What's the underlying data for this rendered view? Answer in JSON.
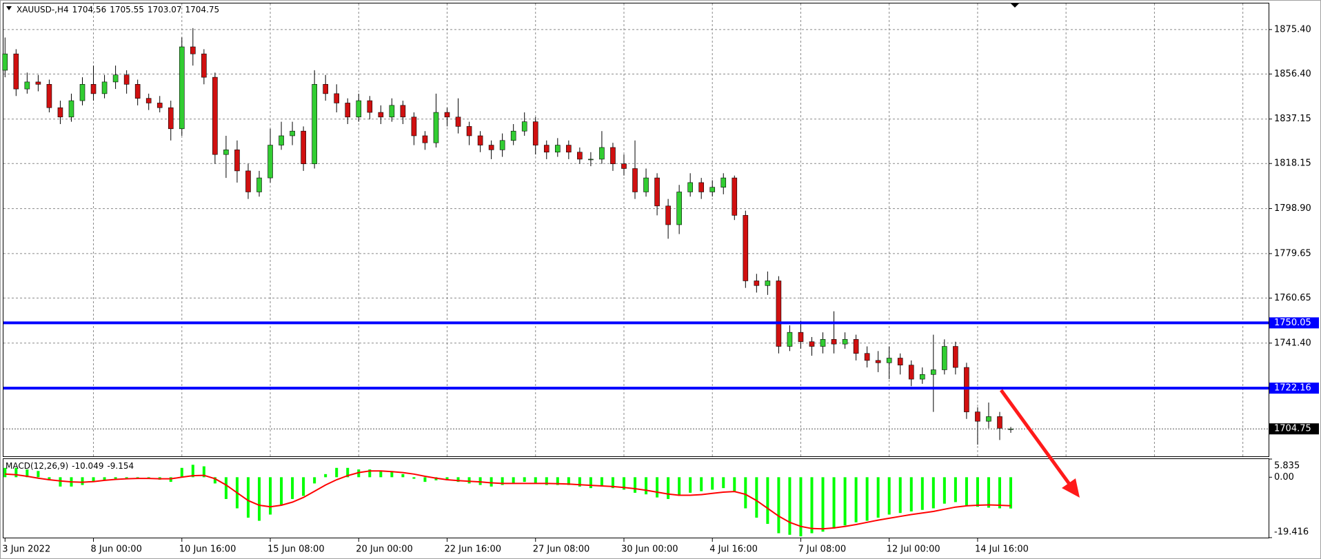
{
  "chart_data": [
    {
      "type": "candlestick",
      "title": "XAUUSD-,H4",
      "header_values": [
        1704.56,
        1705.55,
        1703.07,
        1704.75
      ],
      "categories": [
        "3 Jun 2022",
        null,
        null,
        null,
        null,
        null,
        null,
        null,
        "8 Jun 00:00",
        null,
        null,
        null,
        null,
        null,
        null,
        null,
        "10 Jun 16:00",
        null,
        null,
        null,
        null,
        null,
        null,
        null,
        "15 Jun 08:00",
        null,
        null,
        null,
        null,
        null,
        null,
        null,
        "20 Jun 00:00",
        null,
        null,
        null,
        null,
        null,
        null,
        null,
        "22 Jun 16:00",
        null,
        null,
        null,
        null,
        null,
        null,
        null,
        "27 Jun 08:00",
        null,
        null,
        null,
        null,
        null,
        null,
        null,
        "30 Jun 00:00",
        null,
        null,
        null,
        null,
        null,
        null,
        null,
        "4 Jul 16:00",
        null,
        null,
        null,
        null,
        null,
        null,
        null,
        "7 Jul 08:00",
        null,
        null,
        null,
        null,
        null,
        null,
        null,
        "12 Jul 00:00",
        null,
        null,
        null,
        null,
        null,
        null,
        null,
        "14 Jul 16:00",
        null,
        null,
        null
      ],
      "open": [
        1858,
        1865,
        1850,
        1853,
        1852,
        1842,
        1838,
        1845,
        1852,
        1848,
        1853,
        1856,
        1852,
        1846,
        1844,
        1842,
        1833,
        1868,
        1865,
        1855,
        1822,
        1824,
        1815,
        1806,
        1812,
        1826,
        1830,
        1832,
        1818,
        1852,
        1848,
        1844,
        1838,
        1845,
        1840,
        1838,
        1843,
        1838,
        1830,
        1827,
        1840,
        1838,
        1834,
        1830,
        1826,
        1824,
        1828,
        1832,
        1836,
        1826,
        1823,
        1826,
        1823,
        1820,
        1820,
        1825,
        1818,
        1816,
        1806,
        1812,
        1800,
        1792,
        1806,
        1810,
        1806,
        1808,
        1812,
        1796,
        1768,
        1766,
        1768,
        1740,
        1746,
        1742,
        1740,
        1743,
        1741,
        1743,
        1737,
        1734,
        1733,
        1735,
        1732,
        1726,
        1728,
        1730,
        1740,
        1731,
        1712,
        1708,
        1710,
        1704.56
      ],
      "high": [
        1872,
        1867,
        1857,
        1856,
        1854,
        1845,
        1848,
        1855,
        1860,
        1856,
        1860,
        1858,
        1854,
        1848,
        1847,
        1845,
        1872,
        1876,
        1867,
        1857,
        1830,
        1828,
        1818,
        1815,
        1833,
        1836,
        1836,
        1834,
        1858,
        1856,
        1852,
        1846,
        1848,
        1847,
        1843,
        1846,
        1845,
        1840,
        1832,
        1848,
        1842,
        1846,
        1836,
        1832,
        1828,
        1831,
        1835,
        1840,
        1838,
        1828,
        1829,
        1828,
        1825,
        1823,
        1832,
        1827,
        1822,
        1828,
        1816,
        1814,
        1803,
        1809,
        1814,
        1812,
        1811,
        1814,
        1813,
        1798,
        1771,
        1772,
        1770,
        1749,
        1751,
        1744,
        1746,
        1755,
        1746,
        1745,
        1740,
        1738,
        1740,
        1737,
        1734,
        1731,
        1745,
        1743,
        1742,
        1733,
        1714,
        1716,
        1712,
        1705.55
      ],
      "low": [
        1855,
        1847,
        1848,
        1849,
        1840,
        1835,
        1836,
        1843,
        1845,
        1846,
        1850,
        1848,
        1843,
        1841,
        1840,
        1828,
        1830,
        1860,
        1852,
        1818,
        1812,
        1810,
        1803,
        1804,
        1810,
        1824,
        1826,
        1815,
        1816,
        1845,
        1840,
        1835,
        1836,
        1837,
        1835,
        1836,
        1835,
        1826,
        1824,
        1825,
        1834,
        1831,
        1826,
        1823,
        1820,
        1821,
        1826,
        1830,
        1822,
        1820,
        1821,
        1820,
        1818,
        1817,
        1818,
        1815,
        1813,
        1803,
        1804,
        1796,
        1786,
        1788,
        1804,
        1803,
        1804,
        1805,
        1794,
        1765,
        1763,
        1762,
        1737,
        1738,
        1739,
        1736,
        1737,
        1737,
        1739,
        1734,
        1731,
        1729,
        1726,
        1728,
        1723,
        1724,
        1712,
        1728,
        1728,
        1709,
        1698,
        1705,
        1700,
        1703.07
      ],
      "close": [
        1865,
        1850,
        1853,
        1852,
        1842,
        1838,
        1845,
        1852,
        1848,
        1853,
        1856,
        1852,
        1846,
        1844,
        1842,
        1833,
        1868,
        1865,
        1855,
        1822,
        1824,
        1815,
        1806,
        1812,
        1826,
        1830,
        1832,
        1818,
        1852,
        1848,
        1844,
        1838,
        1845,
        1840,
        1838,
        1843,
        1838,
        1830,
        1827,
        1840,
        1838,
        1834,
        1830,
        1826,
        1824,
        1828,
        1832,
        1836,
        1826,
        1823,
        1826,
        1823,
        1820,
        1820,
        1825,
        1818,
        1816,
        1806,
        1812,
        1800,
        1792,
        1806,
        1810,
        1806,
        1808,
        1812,
        1796,
        1768,
        1766,
        1768,
        1740,
        1746,
        1742,
        1740,
        1743,
        1741,
        1743,
        1737,
        1734,
        1733,
        1735,
        1732,
        1726,
        1728,
        1730,
        1740,
        1731,
        1712,
        1708,
        1710,
        1705,
        1704.75
      ],
      "up_color": "#32cd32",
      "down_color": "#d01010",
      "wick_color": "#000000",
      "ylim": [
        1693.03,
        1886.55
      ],
      "yticks": [
        {
          "value": 1875.4,
          "label": "1875.40"
        },
        {
          "value": 1856.4,
          "label": "1856.40"
        },
        1837.15,
        1818.15,
        {
          "value": 1798.9,
          "label": "1798.90"
        },
        1779.65,
        1760.65,
        {
          "value": 1741.4,
          "label": "1741.40"
        }
      ],
      "grid": true,
      "levels": [
        {
          "value": 1750.05,
          "color": "#0000ff"
        },
        {
          "value": 1722.16,
          "color": "#0000ff"
        }
      ],
      "last_price": 1704.75
    },
    {
      "type": "macd",
      "title": "MACD(12,26,9)",
      "header_values": [
        -10.049,
        -9.154
      ],
      "histogram": [
        3,
        3,
        2.5,
        2,
        -1,
        -3,
        -3,
        -2.5,
        -1.5,
        -1,
        -0.5,
        -0.5,
        -0.5,
        -0.3,
        -0.8,
        -1.5,
        3,
        4,
        3.5,
        -2,
        -7,
        -10,
        -13,
        -14,
        -12,
        -9,
        -7,
        -6,
        -2,
        1,
        3,
        3,
        2.5,
        2.5,
        2,
        2,
        1,
        -0.5,
        -1.5,
        -1,
        -1,
        -1.5,
        -2,
        -2.5,
        -3,
        -2.5,
        -2,
        -1.5,
        -2,
        -2.5,
        -2.5,
        -2.5,
        -3,
        -3.5,
        -3,
        -3.5,
        -4,
        -5,
        -5.5,
        -6.5,
        -7,
        -6,
        -5,
        -4.5,
        -4,
        -3.5,
        -4.5,
        -10,
        -13,
        -15,
        -18,
        -18.5,
        -19,
        -18,
        -17.5,
        -16.5,
        -15.5,
        -14.5,
        -14,
        -13,
        -12,
        -11.5,
        -11,
        -10.5,
        -10,
        -8.5,
        -8,
        -9,
        -9.5,
        -9.8,
        -10,
        -10.049
      ],
      "histogram_color": "#00ff00",
      "signal": [
        1,
        0.8,
        0.3,
        -0.3,
        -0.8,
        -1.2,
        -1.5,
        -1.6,
        -1.4,
        -1,
        -0.7,
        -0.5,
        -0.4,
        -0.4,
        -0.5,
        -0.5,
        0,
        0.5,
        0.6,
        -0.5,
        -2.5,
        -5,
        -7.5,
        -9,
        -9.5,
        -9,
        -8,
        -6.5,
        -4.5,
        -2.5,
        -0.8,
        0.5,
        1.5,
        2,
        2,
        1.8,
        1.5,
        1,
        0.3,
        -0.3,
        -0.8,
        -1.1,
        -1.3,
        -1.5,
        -1.8,
        -2,
        -2,
        -2,
        -2,
        -2,
        -2.1,
        -2.2,
        -2.4,
        -2.6,
        -2.8,
        -3,
        -3.3,
        -3.7,
        -4.2,
        -4.8,
        -5.4,
        -5.8,
        -5.8,
        -5.6,
        -5.2,
        -4.8,
        -4.6,
        -5.5,
        -7.5,
        -10,
        -12.5,
        -14.5,
        -15.8,
        -16.5,
        -16.6,
        -16.3,
        -15.8,
        -15.2,
        -14.5,
        -13.8,
        -13.2,
        -12.6,
        -12,
        -11.5,
        -11,
        -10.3,
        -9.6,
        -9.2,
        -9,
        -8.9,
        -9,
        -9.154
      ],
      "signal_color": "#ff0000",
      "ylim": [
        -19.416,
        5.835
      ],
      "yticks": [
        5.835,
        {
          "value": 0,
          "label": "0.00"
        },
        -19.416
      ]
    }
  ]
}
